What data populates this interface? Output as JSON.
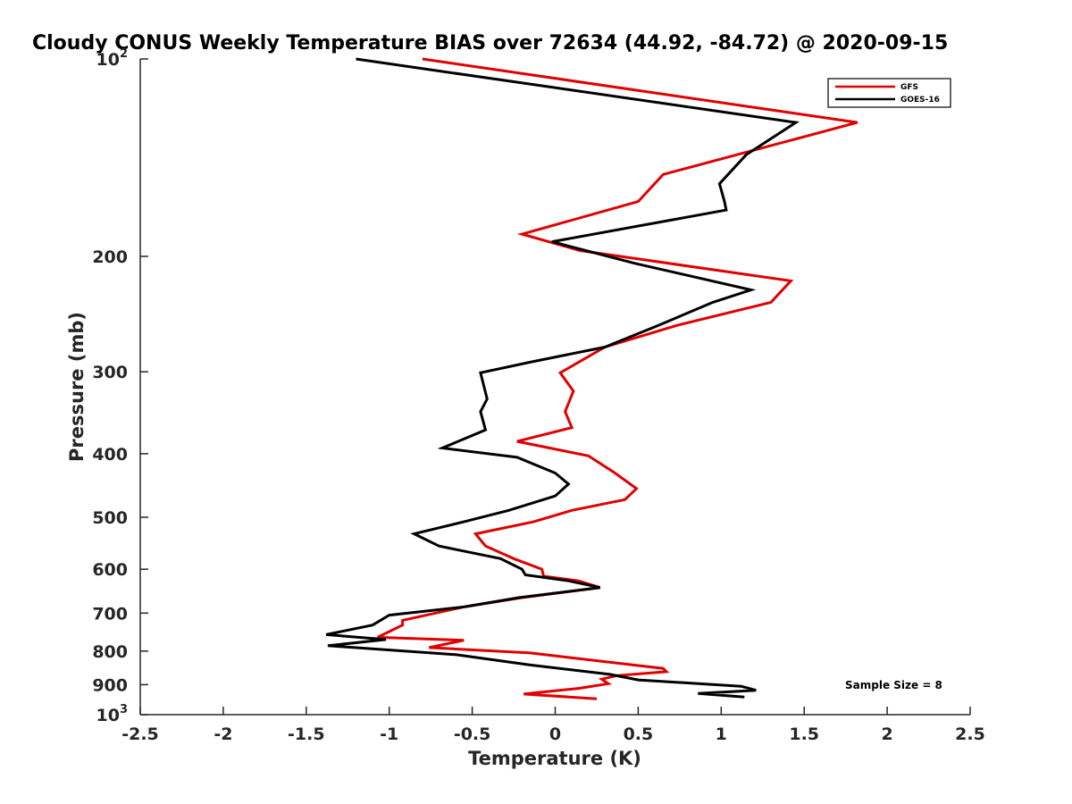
{
  "chart_data": {
    "type": "line",
    "title": "Cloudy CONUS Weekly Temperature BIAS over 72634 (44.92, -84.72) @ 2020-09-15",
    "xlabel": "Temperature (K)",
    "ylabel": "Pressure (mb)",
    "xlim": [
      -2.5,
      2.5
    ],
    "ylim": [
      1000,
      100
    ],
    "y_scale": "log",
    "x_ticks": [
      "-2.5",
      "-2",
      "-1.5",
      "-1",
      "-0.5",
      "0",
      "0.5",
      "1",
      "1.5",
      "2",
      "2.5"
    ],
    "y_ticks": [
      {
        "value": 100,
        "label": "10",
        "sup": "2"
      },
      {
        "value": 200,
        "label": "200",
        "sup": ""
      },
      {
        "value": 300,
        "label": "300",
        "sup": ""
      },
      {
        "value": 400,
        "label": "400",
        "sup": ""
      },
      {
        "value": 500,
        "label": "500",
        "sup": ""
      },
      {
        "value": 600,
        "label": "600",
        "sup": ""
      },
      {
        "value": 700,
        "label": "700",
        "sup": ""
      },
      {
        "value": 800,
        "label": "800",
        "sup": ""
      },
      {
        "value": 900,
        "label": "900",
        "sup": ""
      },
      {
        "value": 1000,
        "label": "10",
        "sup": "3"
      }
    ],
    "legend_position": "top-right",
    "grid": false,
    "annotation": "Sample Size = 8",
    "series": [
      {
        "name": "GFS",
        "color": "#e00000",
        "points": [
          [
            -0.8,
            100
          ],
          [
            1.82,
            125
          ],
          [
            0.65,
            150
          ],
          [
            0.5,
            165
          ],
          [
            -0.2,
            185
          ],
          [
            0.15,
            196
          ],
          [
            1.42,
            218
          ],
          [
            1.3,
            235
          ],
          [
            0.73,
            255
          ],
          [
            0.3,
            275
          ],
          [
            0.03,
            301
          ],
          [
            0.11,
            321
          ],
          [
            0.06,
            345
          ],
          [
            0.1,
            365
          ],
          [
            -0.23,
            383
          ],
          [
            0.2,
            403
          ],
          [
            0.36,
            428
          ],
          [
            0.49,
            452
          ],
          [
            0.42,
            470
          ],
          [
            0.1,
            488
          ],
          [
            -0.13,
            508
          ],
          [
            -0.48,
            530
          ],
          [
            -0.42,
            553
          ],
          [
            -0.25,
            578
          ],
          [
            -0.08,
            600
          ],
          [
            -0.07,
            615
          ],
          [
            0.14,
            625
          ],
          [
            0.27,
            640
          ],
          [
            -0.2,
            663
          ],
          [
            -0.55,
            685
          ],
          [
            -0.92,
            718
          ],
          [
            -0.92,
            730
          ],
          [
            -1.07,
            762
          ],
          [
            -0.55,
            770
          ],
          [
            -0.76,
            790
          ],
          [
            -0.15,
            805
          ],
          [
            0.47,
            840
          ],
          [
            0.65,
            850
          ],
          [
            0.67,
            860
          ],
          [
            0.37,
            872
          ],
          [
            0.28,
            883
          ],
          [
            0.32,
            897
          ],
          [
            0.14,
            912
          ],
          [
            -0.19,
            930
          ],
          [
            0.25,
            946
          ]
        ]
      },
      {
        "name": "GOES-16",
        "color": "#000000",
        "points": [
          [
            -1.2,
            100
          ],
          [
            1.45,
            125
          ],
          [
            1.15,
            140
          ],
          [
            0.99,
            155
          ],
          [
            1.02,
            165
          ],
          [
            1.03,
            170
          ],
          [
            -0.02,
            190
          ],
          [
            0.48,
            205
          ],
          [
            1.18,
            225
          ],
          [
            0.95,
            235
          ],
          [
            0.62,
            255
          ],
          [
            0.3,
            275
          ],
          [
            -0.15,
            290
          ],
          [
            -0.45,
            301
          ],
          [
            -0.41,
            330
          ],
          [
            -0.45,
            345
          ],
          [
            -0.42,
            368
          ],
          [
            -0.68,
            392
          ],
          [
            -0.23,
            405
          ],
          [
            0.0,
            428
          ],
          [
            0.08,
            445
          ],
          [
            0.0,
            464
          ],
          [
            -0.28,
            488
          ],
          [
            -0.55,
            508
          ],
          [
            -0.85,
            530
          ],
          [
            -0.7,
            553
          ],
          [
            -0.33,
            578
          ],
          [
            -0.2,
            600
          ],
          [
            -0.18,
            612
          ],
          [
            0.08,
            625
          ],
          [
            0.27,
            640
          ],
          [
            -0.22,
            663
          ],
          [
            -0.55,
            685
          ],
          [
            -1.0,
            705
          ],
          [
            -1.1,
            730
          ],
          [
            -1.38,
            755
          ],
          [
            -1.02,
            768
          ],
          [
            -1.37,
            785
          ],
          [
            -0.6,
            810
          ],
          [
            -0.15,
            840
          ],
          [
            0.33,
            868
          ],
          [
            0.5,
            885
          ],
          [
            1.12,
            905
          ],
          [
            1.21,
            918
          ],
          [
            0.86,
            928
          ],
          [
            1.14,
            940
          ]
        ]
      }
    ]
  }
}
